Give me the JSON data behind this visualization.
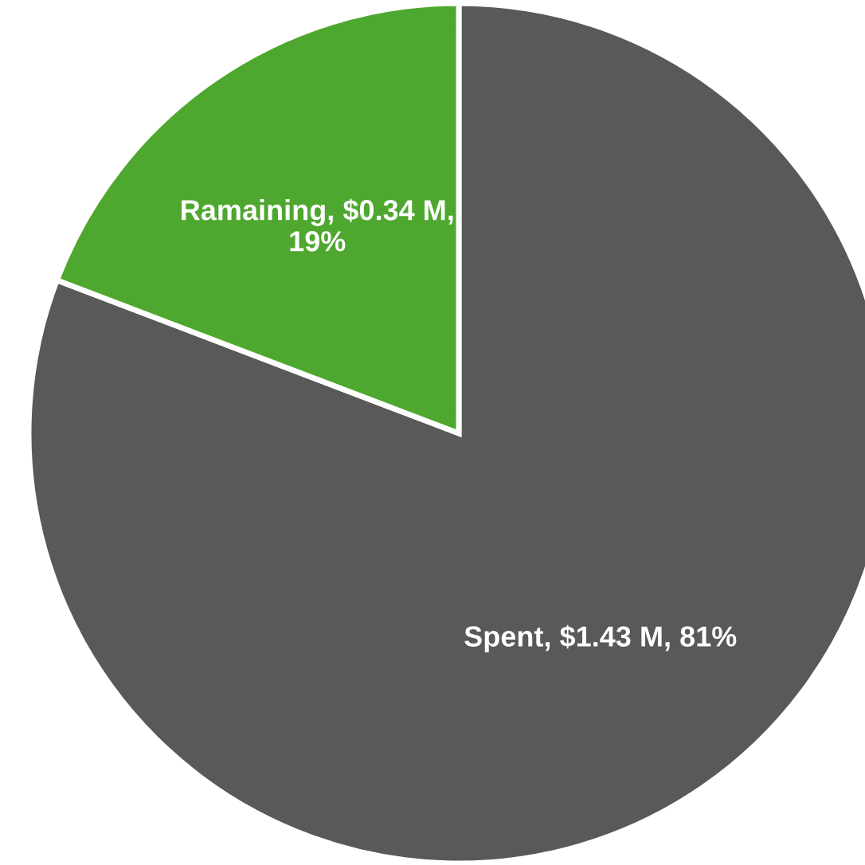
{
  "chart_data": {
    "type": "pie",
    "categories": [
      "Spent",
      "Ramaining"
    ],
    "values": [
      1.43,
      0.34
    ],
    "colors": [
      "#595959",
      "#4ea72e"
    ],
    "value_labels": [
      "$1.43 M, 81%",
      "$0.34 M, 19%"
    ]
  }
}
